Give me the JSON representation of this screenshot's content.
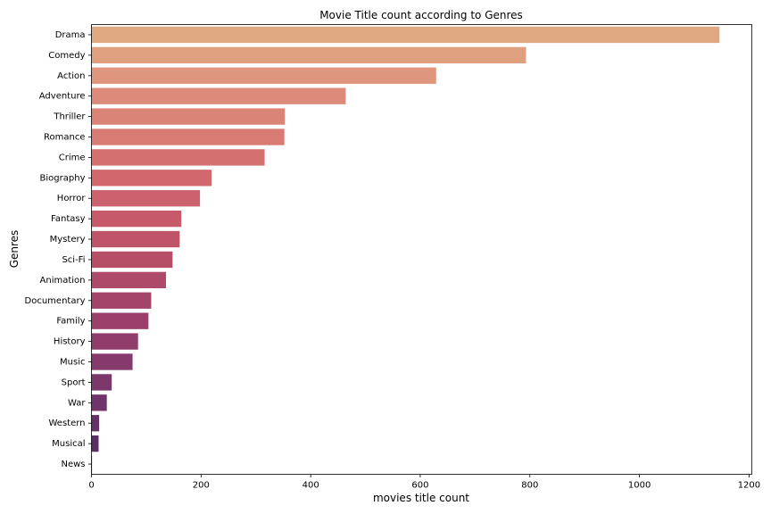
{
  "chart_data": {
    "type": "bar",
    "orientation": "horizontal",
    "title": "Movie Title count according to Genres",
    "xlabel": "movies title count",
    "ylabel": "Genres",
    "xlim": [
      0,
      1205
    ],
    "xticks": [
      0,
      200,
      400,
      600,
      800,
      1000,
      1200
    ],
    "grid": false,
    "legend": "none",
    "palette": "flare",
    "categories": [
      "Drama",
      "Comedy",
      "Action",
      "Adventure",
      "Thriller",
      "Romance",
      "Crime",
      "Biography",
      "Horror",
      "Fantasy",
      "Mystery",
      "Sci-Fi",
      "Animation",
      "Documentary",
      "Family",
      "History",
      "Music",
      "Sport",
      "War",
      "Western",
      "Musical",
      "News"
    ],
    "values": [
      1146,
      793,
      629,
      464,
      353,
      352,
      316,
      219,
      198,
      164,
      161,
      148,
      136,
      109,
      104,
      85,
      75,
      37,
      28,
      14,
      13,
      1
    ],
    "colors": [
      "#e0a881",
      "#dfa080",
      "#de967e",
      "#dc8b7a",
      "#d98477",
      "#d77b73",
      "#d47170",
      "#d1686d",
      "#cc626d",
      "#c65a6a",
      "#bf5368",
      "#b74e68",
      "#af4969",
      "#a44469",
      "#9b406a",
      "#913d6b",
      "#86396b",
      "#7c376b",
      "#70336a",
      "#653167",
      "#5a2e64",
      "#4f2b60"
    ]
  }
}
